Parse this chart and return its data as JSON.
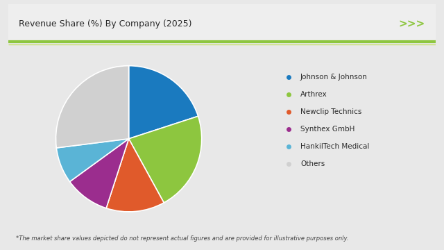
{
  "title": "Revenue Share (%) By Company (2025)",
  "footnote": "*The market share values depicted do not represent actual figures and are provided for illustrative purposes only.",
  "labels": [
    "Johnson & Johnson",
    "Arthrex",
    "Newclip Technics",
    "Synthex GmbH",
    "HankilTech Medical",
    "Others"
  ],
  "values": [
    20,
    22,
    13,
    10,
    8,
    27
  ],
  "colors": [
    "#1a7abf",
    "#8dc63f",
    "#e05a2b",
    "#9b2d8e",
    "#5ab4d6",
    "#d0d0d0"
  ],
  "background_color": "#e8e8e8",
  "panel_color": "#ffffff",
  "header_bg": "#f0f0f0",
  "title_fontsize": 9,
  "legend_fontsize": 7.5,
  "footnote_fontsize": 6,
  "header_line_color": "#8dc63f",
  "arrow_color": "#8dc63f"
}
